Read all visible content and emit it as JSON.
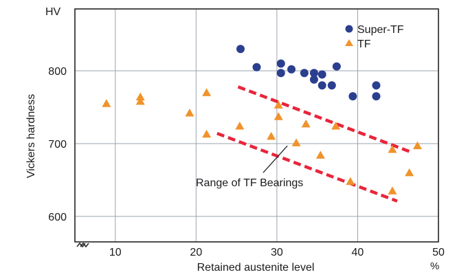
{
  "chart_data": {
    "type": "scatter",
    "xlabel": "Retained austenite level",
    "x_unit": "%",
    "ylabel": "Vickers hardness",
    "y_unit": "HV",
    "xlim": [
      5,
      50
    ],
    "ylim": [
      565,
      885
    ],
    "x_ticks": [
      10,
      20,
      30,
      40,
      50
    ],
    "y_ticks": [
      600,
      700,
      800
    ],
    "grid": true,
    "legend_position": "top-right",
    "x_axis_break": true,
    "series": [
      {
        "name": "Super-TF",
        "marker": "circle",
        "color": "#2b3f8f",
        "points": [
          [
            25.5,
            830
          ],
          [
            27.5,
            805
          ],
          [
            30.5,
            810
          ],
          [
            30.5,
            797
          ],
          [
            31.8,
            802
          ],
          [
            33.4,
            797
          ],
          [
            34.6,
            797
          ],
          [
            34.6,
            788
          ],
          [
            35.6,
            795
          ],
          [
            35.6,
            780
          ],
          [
            36.8,
            780
          ],
          [
            37.4,
            806
          ],
          [
            39.4,
            765
          ],
          [
            42.3,
            780
          ],
          [
            42.3,
            765
          ]
        ]
      },
      {
        "name": "TF",
        "marker": "triangle",
        "color": "#f0932b",
        "points": [
          [
            8.9,
            755
          ],
          [
            13.1,
            764
          ],
          [
            13.1,
            758
          ],
          [
            19.2,
            742
          ],
          [
            21.3,
            770
          ],
          [
            21.3,
            713
          ],
          [
            25.4,
            724
          ],
          [
            29.3,
            710
          ],
          [
            30.2,
            753
          ],
          [
            30.2,
            737
          ],
          [
            32.4,
            701
          ],
          [
            33.6,
            727
          ],
          [
            35.4,
            684
          ],
          [
            37.3,
            724
          ],
          [
            39.1,
            648
          ],
          [
            44.3,
            692
          ],
          [
            44.3,
            635
          ],
          [
            46.4,
            660
          ],
          [
            47.4,
            697
          ]
        ]
      }
    ],
    "range_band": {
      "label": "Range of TF Bearings",
      "color": "#e8253b",
      "upper_line": [
        [
          25.2,
          778
        ],
        [
          46.7,
          688
        ]
      ],
      "lower_line": [
        [
          22.6,
          714
        ],
        [
          44.9,
          621
        ]
      ],
      "pointer_from": [
        28.3,
        660
      ],
      "pointer_to": [
        31.3,
        697
      ]
    }
  }
}
